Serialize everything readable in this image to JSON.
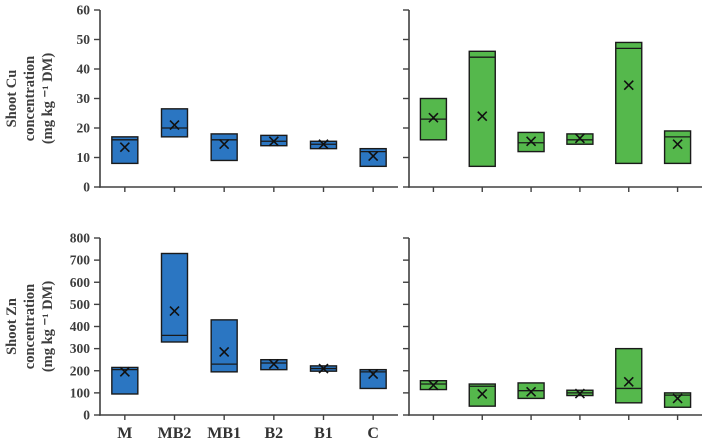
{
  "figure_title": "",
  "chart_data": {
    "type": "box",
    "categories": [
      "M",
      "MB2",
      "MB1",
      "B2",
      "B1",
      "C"
    ],
    "legend": "none",
    "grid": false,
    "colors": {
      "left_series": "#2b76c2",
      "right_series": "#55b84c",
      "box_edge": "#1a1a1a",
      "axis": "#404040",
      "tick_label": "#3d3d3d",
      "x_label": "#333333"
    },
    "rows": [
      {
        "ylabel_lines": [
          "Shoot Cu",
          "concentration",
          "(mg kg ⁻¹ DM)"
        ],
        "ylim": [
          0,
          60
        ],
        "ytick_step": 10,
        "panels": [
          {
            "side": "left",
            "color": "#2b76c2",
            "boxes": [
              {
                "min": 8,
                "max": 17,
                "median": 16,
                "mean": 13.5
              },
              {
                "min": 17,
                "max": 26.5,
                "median": 20,
                "mean": 21
              },
              {
                "min": 9,
                "max": 18,
                "median": 16,
                "mean": 14.5
              },
              {
                "min": 14,
                "max": 17.5,
                "median": 15.5,
                "mean": 15.5
              },
              {
                "min": 13,
                "max": 15.5,
                "median": 14.5,
                "mean": 14.5
              },
              {
                "min": 7,
                "max": 13,
                "median": 12,
                "mean": 10.5
              }
            ]
          },
          {
            "side": "right",
            "color": "#55b84c",
            "boxes": [
              {
                "min": 16,
                "max": 30,
                "median": 23,
                "mean": 23.5
              },
              {
                "min": 7,
                "max": 46,
                "median": 44,
                "mean": 24
              },
              {
                "min": 12,
                "max": 18.5,
                "median": 15,
                "mean": 15.5
              },
              {
                "min": 14.5,
                "max": 18,
                "median": 16,
                "mean": 16.5
              },
              {
                "min": 8,
                "max": 49,
                "median": 47,
                "mean": 34.5
              },
              {
                "min": 8,
                "max": 19,
                "median": 17,
                "mean": 14.5
              }
            ]
          }
        ]
      },
      {
        "ylabel_lines": [
          "Shoot Zn",
          "concentration",
          "(mg kg ⁻¹ DM)"
        ],
        "ylim": [
          0,
          800
        ],
        "ytick_step": 100,
        "panels": [
          {
            "side": "left",
            "color": "#2b76c2",
            "boxes": [
              {
                "min": 95,
                "max": 215,
                "median": 205,
                "mean": 195
              },
              {
                "min": 330,
                "max": 730,
                "median": 360,
                "mean": 470
              },
              {
                "min": 195,
                "max": 430,
                "median": 230,
                "mean": 285
              },
              {
                "min": 205,
                "max": 250,
                "median": 235,
                "mean": 230
              },
              {
                "min": 198,
                "max": 222,
                "median": 210,
                "mean": 210
              },
              {
                "min": 120,
                "max": 205,
                "median": 195,
                "mean": 185
              }
            ]
          },
          {
            "side": "right",
            "color": "#55b84c",
            "boxes": [
              {
                "min": 115,
                "max": 155,
                "median": 140,
                "mean": 135
              },
              {
                "min": 40,
                "max": 140,
                "median": 130,
                "mean": 95
              },
              {
                "min": 75,
                "max": 145,
                "median": 110,
                "mean": 105
              },
              {
                "min": 88,
                "max": 112,
                "median": 100,
                "mean": 97
              },
              {
                "min": 55,
                "max": 300,
                "median": 120,
                "mean": 150
              },
              {
                "min": 35,
                "max": 100,
                "median": 90,
                "mean": 75
              }
            ]
          }
        ]
      }
    ],
    "x_tick_labels_shown_for": "bottom-left-panel"
  }
}
